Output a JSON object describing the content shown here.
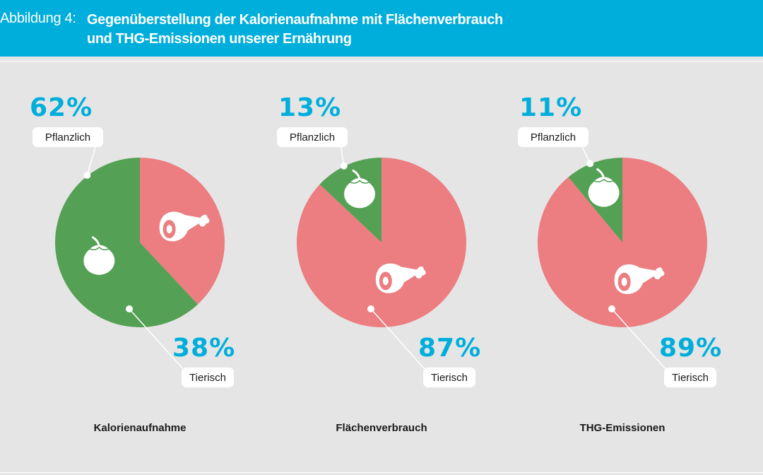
{
  "header": {
    "label": "Abbildung 4:",
    "title_line1": "Gegenüberstellung der Kalorienaufnahme mit Flächenverbrauch",
    "title_line2": "und THG-Emissionen unserer Ernährung"
  },
  "colors": {
    "header": "#00aedc",
    "percent_text": "#00aedc",
    "pflanzlich": "#54a054",
    "tierisch": "#ec7d80",
    "background": "#e5e5e5"
  },
  "icons": {
    "pflanzlich": "tomato-icon",
    "tierisch": "ham-icon"
  },
  "chart_data": [
    {
      "type": "pie",
      "title": "Kalorienaufnahme",
      "slices": [
        {
          "label": "Pflanzlich",
          "value": 62,
          "display": "62%",
          "color": "#54a054"
        },
        {
          "label": "Tierisch",
          "value": 38,
          "display": "38%",
          "color": "#ec7d80"
        }
      ]
    },
    {
      "type": "pie",
      "title": "Flächenverbrauch",
      "slices": [
        {
          "label": "Pflanzlich",
          "value": 13,
          "display": "13%",
          "color": "#54a054"
        },
        {
          "label": "Tierisch",
          "value": 87,
          "display": "87%",
          "color": "#ec7d80"
        }
      ]
    },
    {
      "type": "pie",
      "title": "THG-Emissionen",
      "slices": [
        {
          "label": "Pflanzlich",
          "value": 11,
          "display": "11%",
          "color": "#54a054"
        },
        {
          "label": "Tierisch",
          "value": 89,
          "display": "89%",
          "color": "#ec7d80"
        }
      ]
    }
  ]
}
